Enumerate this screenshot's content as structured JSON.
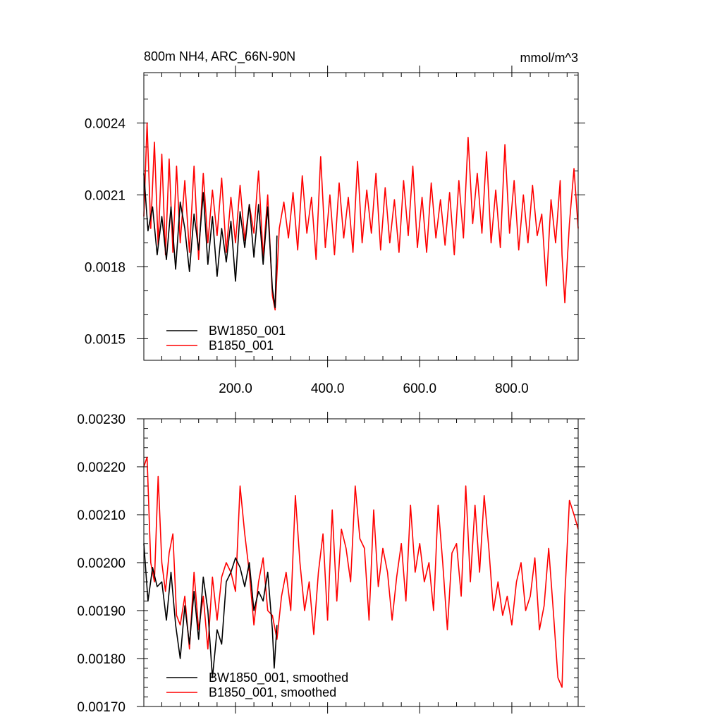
{
  "chart_data": [
    {
      "type": "line",
      "title": "800m NH4, ARC_66N-90N",
      "units": "mmol/m^3",
      "xlim": [
        1,
        944
      ],
      "ylim": [
        0.00141,
        0.00261
      ],
      "xticks": [
        200,
        400,
        600,
        800
      ],
      "xtick_labels": [
        "200.0",
        "400.0",
        "600.0",
        "800.0"
      ],
      "yticks": [
        0.0015,
        0.0018,
        0.0021,
        0.0024
      ],
      "ytick_labels": [
        "0.0015",
        "0.0018",
        "0.0021",
        "0.0024"
      ],
      "legend": [
        "BW1850_001",
        "B1850_001"
      ],
      "legend_position": "bottom-left",
      "series": [
        {
          "name": "BW1850_001",
          "color": "#000000",
          "x": [
            1,
            10,
            20,
            30,
            40,
            50,
            60,
            70,
            80,
            90,
            100,
            110,
            120,
            130,
            140,
            150,
            160,
            170,
            180,
            190,
            200,
            210,
            220,
            230,
            240,
            250,
            260,
            270,
            280,
            286,
            290
          ],
          "y": [
            0.00219,
            0.00195,
            0.00205,
            0.00185,
            0.00201,
            0.00183,
            0.00205,
            0.00179,
            0.00207,
            0.00196,
            0.00178,
            0.00202,
            0.00187,
            0.00211,
            0.00181,
            0.00201,
            0.00176,
            0.00196,
            0.00182,
            0.00199,
            0.00174,
            0.00203,
            0.00188,
            0.00206,
            0.00184,
            0.00206,
            0.00181,
            0.00205,
            0.00171,
            0.00163,
            0.00193
          ]
        },
        {
          "name": "B1850_001",
          "color": "#ff0000",
          "x": [
            1,
            8,
            16,
            24,
            32,
            40,
            48,
            56,
            64,
            72,
            80,
            90,
            100,
            110,
            120,
            130,
            140,
            150,
            160,
            170,
            180,
            190,
            200,
            210,
            220,
            230,
            240,
            250,
            260,
            270,
            280,
            286,
            295,
            305,
            315,
            325,
            335,
            345,
            355,
            365,
            375,
            385,
            395,
            405,
            415,
            425,
            435,
            445,
            455,
            465,
            475,
            485,
            495,
            505,
            515,
            525,
            535,
            545,
            555,
            565,
            575,
            585,
            595,
            605,
            615,
            625,
            635,
            645,
            655,
            665,
            675,
            685,
            695,
            705,
            715,
            725,
            735,
            745,
            755,
            765,
            775,
            785,
            795,
            805,
            815,
            825,
            835,
            845,
            855,
            865,
            875,
            885,
            895,
            905,
            909,
            915,
            925,
            935,
            944
          ],
          "y": [
            0.00201,
            0.0024,
            0.00196,
            0.00232,
            0.00189,
            0.00227,
            0.00185,
            0.00225,
            0.00186,
            0.00222,
            0.0019,
            0.00216,
            0.00186,
            0.00222,
            0.00183,
            0.00219,
            0.0019,
            0.00212,
            0.00193,
            0.00217,
            0.00186,
            0.00209,
            0.0019,
            0.00214,
            0.00191,
            0.00206,
            0.00194,
            0.0022,
            0.00184,
            0.0021,
            0.00168,
            0.00162,
            0.00196,
            0.00207,
            0.00192,
            0.00211,
            0.00187,
            0.00218,
            0.00194,
            0.00209,
            0.00183,
            0.00226,
            0.00188,
            0.0021,
            0.00185,
            0.00215,
            0.00192,
            0.00209,
            0.00186,
            0.00224,
            0.0019,
            0.00212,
            0.00194,
            0.00219,
            0.00187,
            0.00213,
            0.0019,
            0.00208,
            0.00186,
            0.00216,
            0.00193,
            0.00222,
            0.00188,
            0.00209,
            0.00186,
            0.00215,
            0.00192,
            0.00208,
            0.00189,
            0.00211,
            0.00185,
            0.00216,
            0.00192,
            0.00234,
            0.00198,
            0.00219,
            0.00194,
            0.00228,
            0.0019,
            0.00212,
            0.00188,
            0.00231,
            0.00194,
            0.00216,
            0.00187,
            0.0021,
            0.0019,
            0.00214,
            0.00193,
            0.00202,
            0.00172,
            0.00208,
            0.0019,
            0.00216,
            0.00185,
            0.00165,
            0.00198,
            0.00221,
            0.00196
          ]
        }
      ]
    },
    {
      "type": "line",
      "xlim": [
        1,
        944
      ],
      "ylim": [
        0.0017,
        0.0023
      ],
      "xticks": [
        200,
        400,
        600,
        800
      ],
      "yticks": [
        0.0017,
        0.0018,
        0.0019,
        0.002,
        0.0021,
        0.0022,
        0.0023
      ],
      "ytick_labels": [
        "0.00170",
        "0.00180",
        "0.00190",
        "0.00200",
        "0.00210",
        "0.00220",
        "0.00230"
      ],
      "legend": [
        "BW1850_001, smoothed",
        "B1850_001, smoothed"
      ],
      "legend_position": "bottom-left",
      "series": [
        {
          "name": "BW1850_001, smoothed",
          "color": "#000000",
          "x": [
            1,
            10,
            20,
            30,
            40,
            50,
            60,
            70,
            80,
            90,
            100,
            110,
            120,
            130,
            140,
            150,
            160,
            170,
            180,
            190,
            200,
            210,
            220,
            230,
            240,
            250,
            260,
            270,
            280,
            284,
            290
          ],
          "y": [
            0.00204,
            0.00192,
            0.00199,
            0.00195,
            0.00196,
            0.00188,
            0.00198,
            0.00187,
            0.0018,
            0.00191,
            0.00183,
            0.00194,
            0.00184,
            0.00197,
            0.0019,
            0.00176,
            0.00186,
            0.00183,
            0.00196,
            0.00198,
            0.00201,
            0.00199,
            0.00195,
            0.002,
            0.0019,
            0.00194,
            0.00192,
            0.00198,
            0.00186,
            0.00178,
            0.00187
          ]
        },
        {
          "name": "B1850_001, smoothed",
          "color": "#ff0000",
          "x": [
            1,
            8,
            16,
            24,
            32,
            40,
            48,
            56,
            64,
            72,
            80,
            90,
            100,
            110,
            120,
            130,
            140,
            150,
            160,
            170,
            180,
            190,
            200,
            210,
            220,
            230,
            240,
            250,
            260,
            270,
            280,
            290,
            300,
            310,
            320,
            330,
            340,
            350,
            360,
            370,
            380,
            390,
            400,
            410,
            420,
            430,
            440,
            450,
            460,
            470,
            480,
            490,
            500,
            510,
            520,
            530,
            540,
            550,
            560,
            570,
            580,
            590,
            600,
            610,
            620,
            630,
            640,
            650,
            660,
            670,
            680,
            690,
            700,
            710,
            720,
            730,
            740,
            750,
            760,
            770,
            780,
            790,
            800,
            810,
            820,
            830,
            840,
            850,
            860,
            870,
            880,
            890,
            900,
            909,
            915,
            925,
            935,
            944
          ],
          "y": [
            0.0022,
            0.00222,
            0.002,
            0.00196,
            0.00218,
            0.002,
            0.00194,
            0.00202,
            0.00206,
            0.00189,
            0.00187,
            0.00193,
            0.00182,
            0.00198,
            0.00186,
            0.00193,
            0.00182,
            0.00197,
            0.00188,
            0.00197,
            0.002,
            0.00198,
            0.00194,
            0.00216,
            0.00206,
            0.00198,
            0.00187,
            0.00196,
            0.00201,
            0.0019,
            0.00189,
            0.00184,
            0.00193,
            0.00198,
            0.0019,
            0.00214,
            0.002,
            0.0019,
            0.00196,
            0.00185,
            0.00198,
            0.00206,
            0.00188,
            0.00211,
            0.00192,
            0.00207,
            0.00203,
            0.00196,
            0.00216,
            0.00205,
            0.00203,
            0.00188,
            0.00211,
            0.00195,
            0.00203,
            0.00198,
            0.00188,
            0.00197,
            0.00204,
            0.00192,
            0.00212,
            0.00198,
            0.00204,
            0.00196,
            0.002,
            0.0019,
            0.00212,
            0.002,
            0.00186,
            0.00202,
            0.00204,
            0.00193,
            0.00216,
            0.00196,
            0.00212,
            0.00198,
            0.00214,
            0.00203,
            0.0019,
            0.00196,
            0.00189,
            0.00193,
            0.00187,
            0.00196,
            0.002,
            0.0019,
            0.00193,
            0.00201,
            0.00186,
            0.00191,
            0.00203,
            0.0019,
            0.00176,
            0.00174,
            0.00193,
            0.00213,
            0.0021,
            0.00207
          ]
        }
      ]
    }
  ]
}
